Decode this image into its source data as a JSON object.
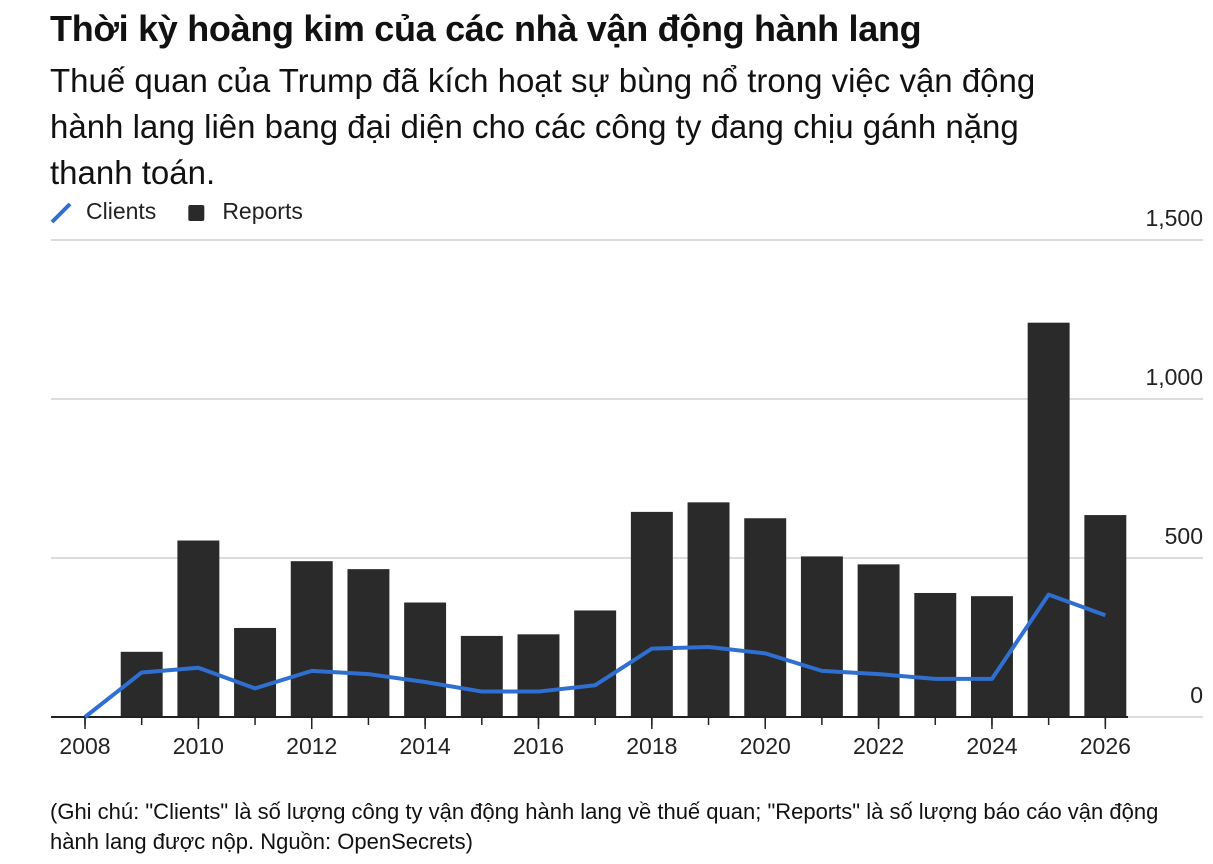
{
  "chart_data": {
    "type": "bar-line",
    "title": "Thời kỳ hoàng kim của các nhà vận động hành lang",
    "subtitle": "Thuế quan của Trump đã kích hoạt sự bùng nổ trong việc vận động hành lang liên bang đại diện cho các công ty đang chịu gánh nặng thanh toán.",
    "note": "(Ghi chú: \"Clients\" là số lượng công ty vận động hành lang về thuế quan; \"Reports\" là số lượng báo cáo vận động hành lang được nộp. Nguồn: OpenSecrets)",
    "series": [
      {
        "name": "Clients",
        "type": "line",
        "color": "#2f6fd1",
        "x": [
          2008,
          2009,
          2010,
          2011,
          2012,
          2013,
          2014,
          2015,
          2016,
          2017,
          2018,
          2019,
          2020,
          2021,
          2022,
          2023,
          2024,
          2025,
          2026
        ],
        "values": [
          0,
          140,
          155,
          90,
          145,
          135,
          110,
          80,
          80,
          100,
          215,
          220,
          200,
          145,
          135,
          120,
          120,
          385,
          320
        ]
      },
      {
        "name": "Reports",
        "type": "bar",
        "color": "#2a2a2a",
        "x": [
          2009,
          2010,
          2011,
          2012,
          2013,
          2014,
          2015,
          2016,
          2017,
          2018,
          2019,
          2020,
          2021,
          2022,
          2023,
          2024,
          2025,
          2026
        ],
        "values": [
          205,
          555,
          280,
          490,
          465,
          360,
          255,
          260,
          335,
          645,
          675,
          625,
          505,
          480,
          390,
          380,
          1240,
          635
        ]
      }
    ],
    "xlim": [
      2007.4,
      2026.4
    ],
    "xticks": [
      2008,
      2010,
      2012,
      2014,
      2016,
      2018,
      2020,
      2022,
      2024,
      2026
    ],
    "ylim": [
      0,
      1500
    ],
    "yticks": [
      0,
      500,
      {
        "value": 1000,
        "label": "1,000"
      },
      {
        "value": 1500,
        "label": "1,500"
      }
    ],
    "grid": true,
    "legend": "top-left"
  }
}
